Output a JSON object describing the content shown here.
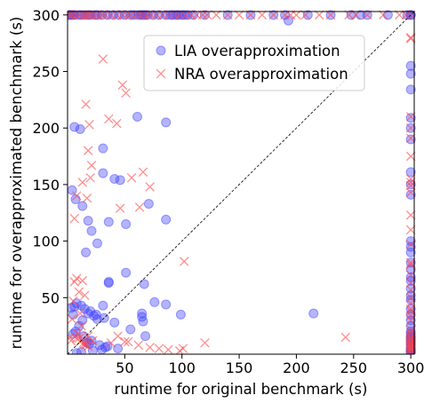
{
  "chart_data": {
    "type": "scatter",
    "xlabel": "runtime for original benchmark (s)",
    "ylabel": "runtime for overapproximated benchmark (s)",
    "xlim": [
      0,
      303
    ],
    "ylim": [
      0,
      303
    ],
    "xticks": [
      50,
      100,
      150,
      200,
      250,
      300
    ],
    "yticks": [
      50,
      100,
      150,
      200,
      250,
      300
    ],
    "grid": false,
    "legend": "top-right",
    "diagonal": true,
    "series": [
      {
        "name": "LIA overapproximation",
        "marker": "circle",
        "color": "#4444ff",
        "x": [
          1,
          2,
          3,
          5,
          6,
          10,
          12,
          15,
          18,
          20,
          24,
          26,
          30,
          35,
          40,
          45,
          50,
          55,
          58,
          62,
          64,
          66,
          68,
          70,
          75,
          80,
          86,
          90,
          92,
          95,
          97,
          100,
          102,
          105,
          110,
          120,
          140,
          160,
          180,
          190,
          193,
          210,
          230,
          248,
          256,
          262,
          280,
          297,
          300,
          300,
          6,
          11,
          4,
          7,
          13,
          18,
          21,
          31,
          41,
          46,
          71,
          86,
          26,
          36,
          51,
          61,
          86,
          31,
          36,
          36,
          51,
          65,
          67,
          76,
          86,
          16,
          26,
          32,
          66,
          55,
          41,
          31,
          65,
          68,
          215,
          99,
          5,
          3,
          6,
          8,
          12,
          15,
          18,
          20,
          23,
          25,
          13,
          10,
          7,
          5,
          14,
          21,
          17,
          28,
          33,
          44,
          35,
          19,
          30,
          22,
          12,
          8,
          300,
          300,
          300,
          300,
          300,
          300,
          300,
          300,
          300,
          300,
          300,
          300,
          300,
          300,
          300,
          300,
          300,
          300,
          300,
          300,
          300,
          300,
          300,
          300,
          300,
          300,
          300,
          300,
          300,
          300,
          300,
          300,
          300,
          300,
          300,
          300,
          300,
          300,
          300,
          300,
          300
        ],
        "y": [
          300,
          300,
          300,
          300,
          300,
          300,
          300,
          300,
          300,
          300,
          300,
          300,
          300,
          300,
          300,
          300,
          300,
          300,
          300,
          300,
          300,
          300,
          300,
          300,
          300,
          300,
          300,
          300,
          300,
          300,
          300,
          300,
          300,
          300,
          300,
          300,
          300,
          300,
          300,
          300,
          295,
          300,
          300,
          300,
          300,
          300,
          300,
          300,
          300,
          300,
          201,
          199,
          145,
          137,
          131,
          118,
          109,
          160,
          155,
          154,
          133,
          119,
          98,
          117,
          115,
          210,
          205,
          182,
          64,
          63,
          72,
          36,
          62,
          46,
          44,
          90,
          31,
          32,
          29,
          22,
          28,
          43,
          33,
          16,
          36,
          35,
          35,
          41,
          42,
          45,
          43,
          40,
          36,
          38,
          34,
          35,
          30,
          25,
          20,
          18,
          16,
          12,
          10,
          8,
          6,
          5,
          7,
          9,
          4,
          3,
          2,
          1,
          248,
          255,
          234,
          209,
          200,
          190,
          161,
          150,
          141,
          100,
          95,
          90,
          81,
          75,
          68,
          65,
          58,
          52,
          48,
          40,
          35,
          30,
          25,
          20,
          18,
          16,
          14,
          12,
          10,
          8,
          6,
          4,
          3,
          2,
          1,
          2,
          3,
          5,
          9,
          12,
          15
        ]
      },
      {
        "name": "NRA overapproximation",
        "marker": "x",
        "color": "#ff4444",
        "x": [
          1,
          3,
          5,
          8,
          11,
          14,
          16,
          18,
          20,
          22,
          26,
          30,
          33,
          38,
          43,
          48,
          52,
          55,
          60,
          63,
          66,
          70,
          73,
          78,
          83,
          88,
          94,
          98,
          103,
          108,
          113,
          118,
          122,
          130,
          140,
          150,
          160,
          170,
          180,
          190,
          195,
          200,
          208,
          220,
          230,
          246,
          252,
          262,
          276,
          290,
          296,
          300,
          16,
          19,
          18,
          21,
          20,
          31,
          36,
          43,
          48,
          51,
          46,
          56,
          66,
          63,
          72,
          102,
          101,
          120,
          243,
          17,
          13,
          8,
          6,
          8,
          13,
          12,
          6,
          5,
          10,
          15,
          11,
          4,
          2,
          9,
          3,
          18,
          8,
          10,
          13,
          11,
          14,
          15,
          16,
          18,
          22,
          38,
          44,
          50,
          53,
          62,
          72,
          80,
          88,
          98,
          300,
          300,
          300,
          300,
          300,
          300,
          300,
          300,
          300,
          300,
          300,
          300,
          300,
          300,
          300,
          300,
          300,
          300,
          300,
          300,
          300,
          300,
          300,
          300,
          300,
          300,
          300,
          300,
          300,
          300,
          300,
          300,
          300,
          300,
          300,
          300,
          300,
          300,
          300,
          300
        ],
        "y": [
          300,
          300,
          300,
          300,
          300,
          300,
          300,
          300,
          300,
          300,
          300,
          300,
          300,
          300,
          300,
          300,
          300,
          300,
          300,
          300,
          300,
          300,
          300,
          300,
          300,
          300,
          300,
          300,
          300,
          300,
          300,
          300,
          300,
          300,
          300,
          300,
          300,
          300,
          300,
          300,
          300,
          300,
          300,
          300,
          300,
          300,
          300,
          300,
          300,
          300,
          300,
          300,
          221,
          203,
          180,
          167,
          156,
          261,
          208,
          204,
          238,
          231,
          129,
          156,
          161,
          130,
          148,
          82,
          5,
          10,
          15,
          138,
          152,
          140,
          120,
          67,
          65,
          25,
          64,
          47,
          55,
          52,
          36,
          31,
          15,
          18,
          12,
          16,
          14,
          14,
          13,
          11,
          10,
          9,
          8,
          7,
          12,
          10,
          16,
          11,
          11,
          8,
          6,
          5,
          4,
          3,
          280,
          279,
          210,
          200,
          191,
          175,
          155,
          152,
          149,
          143,
          123,
          110,
          97,
          81,
          79,
          70,
          63,
          57,
          50,
          45,
          40,
          38,
          34,
          30,
          22,
          19,
          17,
          15,
          13,
          11,
          9,
          7,
          5,
          3,
          4,
          6,
          8,
          10,
          14,
          1
        ]
      }
    ]
  }
}
